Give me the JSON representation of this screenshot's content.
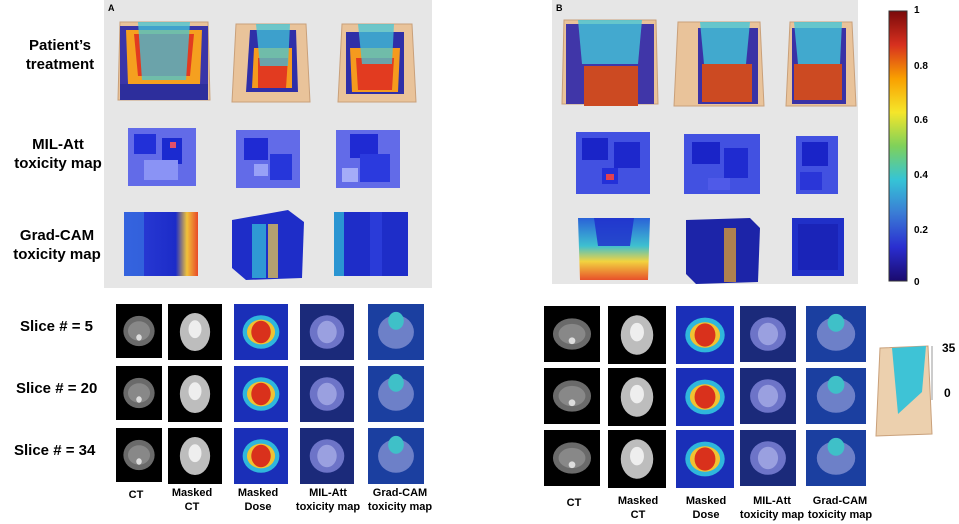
{
  "panels": {
    "a_label": "A",
    "b_label": "B"
  },
  "row_labels": {
    "treatment": [
      "Patient’s",
      "treatment"
    ],
    "milatt": [
      "MIL-Att",
      "toxicity map"
    ],
    "gradcam": [
      "Grad-CAM",
      "toxicity map"
    ]
  },
  "slice_labels": [
    "Slice # = 5",
    "Slice # = 20",
    "Slice # = 34"
  ],
  "column_labels": [
    {
      "l1": "CT",
      "l2": ""
    },
    {
      "l1": "Masked",
      "l2": "CT"
    },
    {
      "l1": "Masked",
      "l2": "Dose"
    },
    {
      "l1": "MIL-Att",
      "l2": "toxicity map"
    },
    {
      "l1": "Grad-CAM",
      "l2": "toxicity map"
    }
  ],
  "colorbar": {
    "ticks": [
      "1",
      "0.8",
      "0.6",
      "0.4",
      "0.2",
      "0"
    ],
    "colors": [
      "#7a0a0a",
      "#d7301f",
      "#f9a000",
      "#f5e62a",
      "#7fd15a",
      "#35c4d6",
      "#3a7bd5",
      "#2a2ed0",
      "#1a0a6e"
    ]
  },
  "mini_scale": {
    "ticks": [
      "35",
      "0"
    ]
  }
}
